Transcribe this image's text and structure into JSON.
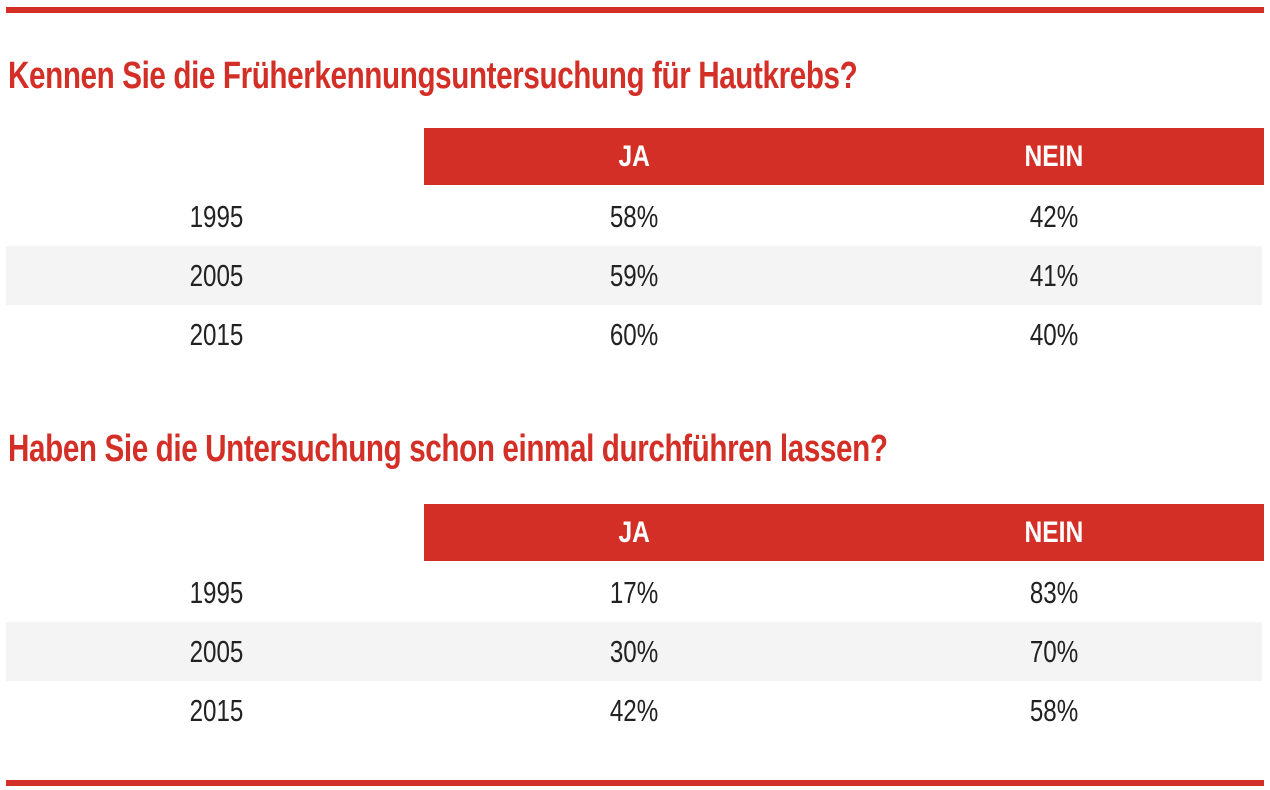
{
  "colors": {
    "accent": "#d32f27",
    "row_shade": "#f4f4f4",
    "text": "#222222",
    "background": "#ffffff"
  },
  "chart_data": [
    {
      "type": "table",
      "title": "Kennen Sie die Früherkennungsuntersuchung für Hautkrebs?",
      "columns": [
        "JA",
        "NEIN"
      ],
      "rows": [
        {
          "label": "1995",
          "values": [
            "58%",
            "42%"
          ]
        },
        {
          "label": "2005",
          "values": [
            "59%",
            "41%"
          ]
        },
        {
          "label": "2015",
          "values": [
            "60%",
            "40%"
          ]
        }
      ]
    },
    {
      "type": "table",
      "title": "Haben Sie die Untersuchung schon einmal durchführen lassen?",
      "columns": [
        "JA",
        "NEIN"
      ],
      "rows": [
        {
          "label": "1995",
          "values": [
            "17%",
            "83%"
          ]
        },
        {
          "label": "2005",
          "values": [
            "30%",
            "70%"
          ]
        },
        {
          "label": "2015",
          "values": [
            "42%",
            "58%"
          ]
        }
      ]
    }
  ]
}
